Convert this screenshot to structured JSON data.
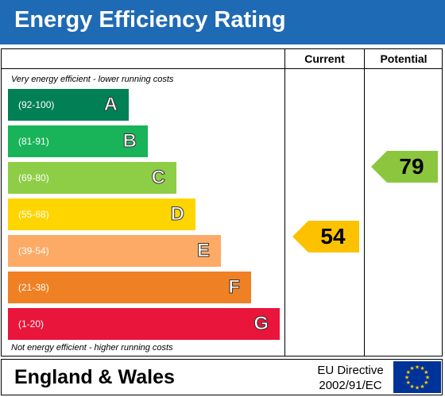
{
  "header": {
    "title": "Energy Efficiency Rating"
  },
  "columns": {
    "current": "Current",
    "potential": "Potential"
  },
  "notes": {
    "top": "Very energy efficient - lower running costs",
    "bottom": "Not energy efficient - higher running costs"
  },
  "bands": [
    {
      "range": "(92-100)",
      "letter": "A",
      "color": "#008054"
    },
    {
      "range": "(81-91)",
      "letter": "B",
      "color": "#19b459"
    },
    {
      "range": "(69-80)",
      "letter": "C",
      "color": "#8dce46"
    },
    {
      "range": "(55-68)",
      "letter": "D",
      "color": "#ffd500"
    },
    {
      "range": "(39-54)",
      "letter": "E",
      "color": "#fcaa65"
    },
    {
      "range": "(21-38)",
      "letter": "F",
      "color": "#ef8023"
    },
    {
      "range": "(1-20)",
      "letter": "G",
      "color": "#e9153b"
    }
  ],
  "ratings": {
    "current": {
      "value": "54",
      "band": "E",
      "color": "#fcc200"
    },
    "potential": {
      "value": "79",
      "band": "C",
      "color": "#8cc63f"
    }
  },
  "footer": {
    "region": "England & Wales",
    "directive_line1": "EU Directive",
    "directive_line2": "2002/91/EC",
    "flag_icon": "eu-flag-icon"
  }
}
